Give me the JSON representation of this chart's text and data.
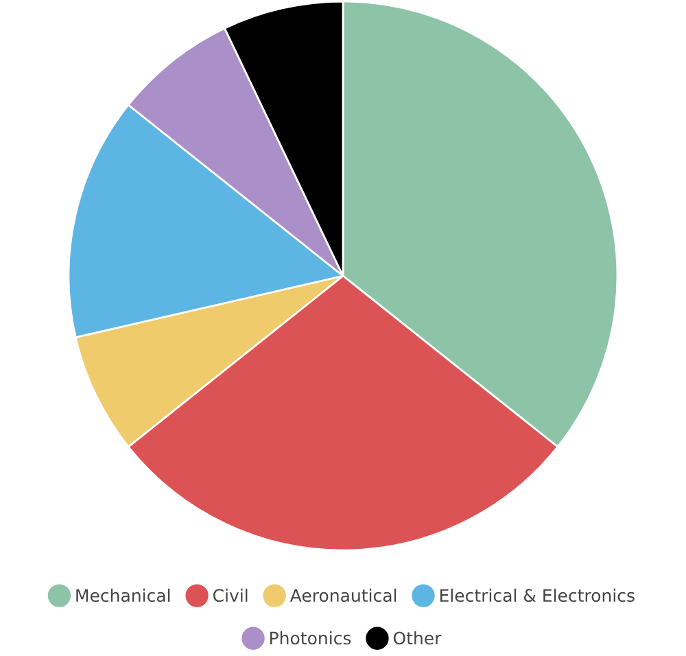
{
  "chart_data": {
    "type": "pie",
    "categories": [
      "Mechanical",
      "Civil",
      "Aeronautical",
      "Electrical & Electronics",
      "Photonics",
      "Other"
    ],
    "values": [
      35.7,
      28.6,
      7.1,
      14.3,
      7.2,
      7.1
    ],
    "colors": [
      "#8dc3a7",
      "#dc5356",
      "#efcb6b",
      "#5db5e4",
      "#ab8fc8",
      "#000000"
    ],
    "legend": "bottom"
  }
}
